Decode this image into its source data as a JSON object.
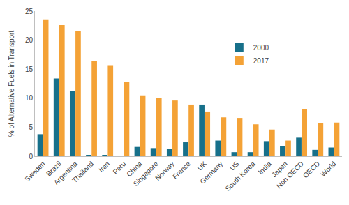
{
  "chart_data": {
    "type": "bar",
    "y_label": "% of Alternative Fuels in Transport",
    "categories": [
      "Sweden",
      "Brazil",
      "Argentina",
      "Thailand",
      "Iran",
      "Peru",
      "China",
      "Singapore",
      "Norway",
      "France",
      "UK",
      "Germany",
      "US",
      "South Korea",
      "India",
      "Japan",
      "Non OECD",
      "OECD",
      "World"
    ],
    "series": [
      {
        "name": "2000",
        "color": "#17708a",
        "values": [
          3.8,
          13.4,
          11.2,
          0.1,
          0.1,
          0,
          1.6,
          1.4,
          1.3,
          2.4,
          8.9,
          2.7,
          0.7,
          0.7,
          2.6,
          1.8,
          3.2,
          1.1,
          1.5
        ]
      },
      {
        "name": "2017",
        "color": "#f4a236",
        "values": [
          23.6,
          22.6,
          21.5,
          16.4,
          15.7,
          12.8,
          10.5,
          10.1,
          9.6,
          8.9,
          7.7,
          6.7,
          6.6,
          5.5,
          4.6,
          2.7,
          8.1,
          5.7,
          5.8
        ]
      }
    ],
    "ylim": [
      0,
      25
    ],
    "yticks": [
      0,
      5,
      10,
      15,
      20,
      25
    ],
    "grid": false,
    "legend": "upper right"
  }
}
